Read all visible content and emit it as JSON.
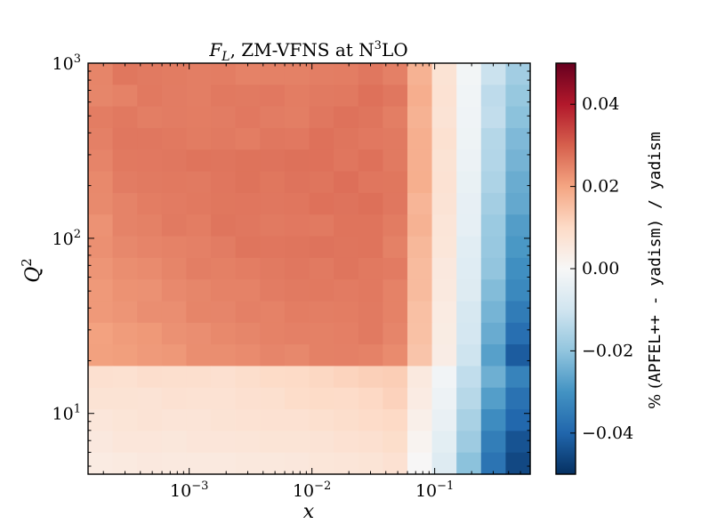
{
  "chart_data": {
    "type": "heatmap",
    "title": {
      "f": "F",
      "sub": "L",
      "rest": ", ZM-VFNS at N",
      "sup": "3",
      "end": "LO"
    },
    "xlabel": "x",
    "ylabel": {
      "base": "Q",
      "sup": "2"
    },
    "x_scale": "log",
    "y_scale": "log",
    "xlim": [
      0.00015,
      0.6
    ],
    "ylim": [
      4.5,
      1000
    ],
    "x_tick_labels": [
      {
        "value": 0.001,
        "base": "10",
        "exp": "−3"
      },
      {
        "value": 0.01,
        "base": "10",
        "exp": "−2"
      },
      {
        "value": 0.1,
        "base": "10",
        "exp": "−1"
      }
    ],
    "y_tick_labels": [
      {
        "value": 10,
        "base": "10",
        "exp": "1"
      },
      {
        "value": 100,
        "base": "10",
        "exp": "2"
      },
      {
        "value": 1000,
        "base": "10",
        "exp": "3"
      }
    ],
    "colorbar": {
      "range": [
        -0.05,
        0.05
      ],
      "colormap": "RdBu_r",
      "ticks": [
        "0.04",
        "0.02",
        "0.00",
        "−0.02",
        "−0.04"
      ],
      "tick_values": [
        0.04,
        0.02,
        0.0,
        -0.02,
        -0.04
      ],
      "label": {
        "prefix": "% (",
        "apfel": "APFEL++",
        "middle": " - ",
        "yadism": "yadism",
        "suffix": ") / yadism"
      }
    },
    "x_bins": 18,
    "y_bins": 19,
    "values": [
      [
        0.0247,
        0.0267,
        0.0262,
        0.026,
        0.0256,
        0.0258,
        0.0251,
        0.0252,
        0.0252,
        0.0257,
        0.0258,
        0.0266,
        0.0253,
        0.0176,
        0.0072,
        -0.0012,
        -0.011,
        -0.0175
      ],
      [
        0.0245,
        0.0251,
        0.0264,
        0.0259,
        0.0256,
        0.0264,
        0.0262,
        0.0265,
        0.0258,
        0.0262,
        0.0264,
        0.0275,
        0.0266,
        0.0183,
        0.0076,
        -0.0019,
        -0.013,
        -0.0192
      ],
      [
        0.0258,
        0.0264,
        0.0257,
        0.0259,
        0.0258,
        0.0259,
        0.0265,
        0.0259,
        0.0256,
        0.0266,
        0.0274,
        0.0269,
        0.0257,
        0.0176,
        0.0071,
        -0.002,
        -0.0124,
        -0.0207
      ],
      [
        0.0253,
        0.0266,
        0.0266,
        0.0264,
        0.026,
        0.0263,
        0.0258,
        0.0266,
        0.0265,
        0.0275,
        0.0269,
        0.0265,
        0.0263,
        0.0181,
        0.0079,
        -0.0024,
        -0.0145,
        -0.0224
      ],
      [
        0.0248,
        0.0264,
        0.0265,
        0.0266,
        0.0271,
        0.027,
        0.0273,
        0.0272,
        0.0276,
        0.0275,
        0.0268,
        0.0275,
        0.0263,
        0.0181,
        0.0072,
        -0.0029,
        -0.0147,
        -0.0236
      ],
      [
        0.0241,
        0.0259,
        0.0262,
        0.0264,
        0.0262,
        0.0268,
        0.0273,
        0.0267,
        0.0272,
        0.027,
        0.0278,
        0.0268,
        0.0267,
        0.0182,
        0.0075,
        -0.0036,
        -0.0157,
        -0.0251
      ],
      [
        0.0239,
        0.0249,
        0.0258,
        0.0261,
        0.0264,
        0.0267,
        0.0268,
        0.0266,
        0.0268,
        0.0275,
        0.0272,
        0.0277,
        0.0266,
        0.017,
        0.0071,
        -0.0042,
        -0.0172,
        -0.0258
      ],
      [
        0.0227,
        0.0249,
        0.0252,
        0.0262,
        0.0258,
        0.0269,
        0.0266,
        0.0263,
        0.0265,
        0.0263,
        0.0271,
        0.0271,
        0.026,
        0.0175,
        0.0064,
        -0.0044,
        -0.0185,
        -0.028
      ],
      [
        0.023,
        0.0242,
        0.0248,
        0.025,
        0.0253,
        0.0259,
        0.027,
        0.0268,
        0.027,
        0.0272,
        0.0269,
        0.0271,
        0.0252,
        0.0165,
        0.0062,
        -0.0057,
        -0.0191,
        -0.0291
      ],
      [
        0.0223,
        0.0234,
        0.0237,
        0.0247,
        0.0256,
        0.0254,
        0.0258,
        0.0263,
        0.0266,
        0.0262,
        0.027,
        0.0264,
        0.0261,
        0.016,
        0.0053,
        -0.0063,
        -0.0199,
        -0.0308
      ],
      [
        0.0217,
        0.0228,
        0.0229,
        0.024,
        0.0245,
        0.0251,
        0.025,
        0.0259,
        0.0262,
        0.0264,
        0.0261,
        0.0264,
        0.025,
        0.016,
        0.005,
        -0.0067,
        -0.0219,
        -0.0323
      ],
      [
        0.0217,
        0.0223,
        0.0233,
        0.0233,
        0.0247,
        0.0246,
        0.0253,
        0.0251,
        0.0258,
        0.0256,
        0.0258,
        0.0262,
        0.025,
        0.015,
        0.0044,
        -0.0083,
        -0.0235,
        -0.0352
      ],
      [
        0.0204,
        0.0213,
        0.0218,
        0.0229,
        0.0233,
        0.0241,
        0.0245,
        0.025,
        0.0253,
        0.0252,
        0.0255,
        0.0262,
        0.0246,
        0.0149,
        0.0041,
        -0.009,
        -0.0252,
        -0.0379
      ],
      [
        0.0206,
        0.0209,
        0.0216,
        0.0219,
        0.0234,
        0.0234,
        0.0237,
        0.0246,
        0.0242,
        0.0252,
        0.0253,
        0.0251,
        0.0237,
        0.0142,
        0.0038,
        -0.0103,
        -0.0275,
        -0.0418
      ],
      [
        0.0082,
        0.008,
        0.0088,
        0.0086,
        0.0085,
        0.0082,
        0.009,
        0.0097,
        0.0099,
        0.0106,
        0.0113,
        0.012,
        0.0125,
        0.0051,
        -0.0016,
        -0.0125,
        -0.0245,
        -0.0335
      ],
      [
        0.0073,
        0.0072,
        0.007,
        0.0077,
        0.0076,
        0.0076,
        0.0081,
        0.0083,
        0.0093,
        0.0097,
        0.0096,
        0.0103,
        0.0116,
        0.0042,
        -0.0026,
        -0.0142,
        -0.0279,
        -0.0373
      ],
      [
        0.0061,
        0.0066,
        0.007,
        0.0067,
        0.0067,
        0.0072,
        0.0076,
        0.0077,
        0.0078,
        0.0083,
        0.0089,
        0.0095,
        0.0102,
        0.003,
        -0.0037,
        -0.0164,
        -0.0315,
        -0.0396
      ],
      [
        0.0053,
        0.0061,
        0.006,
        0.0058,
        0.0063,
        0.0063,
        0.0064,
        0.0068,
        0.0068,
        0.0071,
        0.0078,
        0.0081,
        0.0091,
        0.0015,
        -0.0052,
        -0.0181,
        -0.0346,
        -0.0435
      ],
      [
        0.0044,
        0.0048,
        0.0052,
        0.0049,
        0.005,
        0.005,
        0.0054,
        0.0054,
        0.0056,
        0.0062,
        0.0064,
        0.0068,
        0.0078,
        0.0003,
        -0.0067,
        -0.0207,
        -0.0368,
        -0.0455
      ]
    ]
  }
}
